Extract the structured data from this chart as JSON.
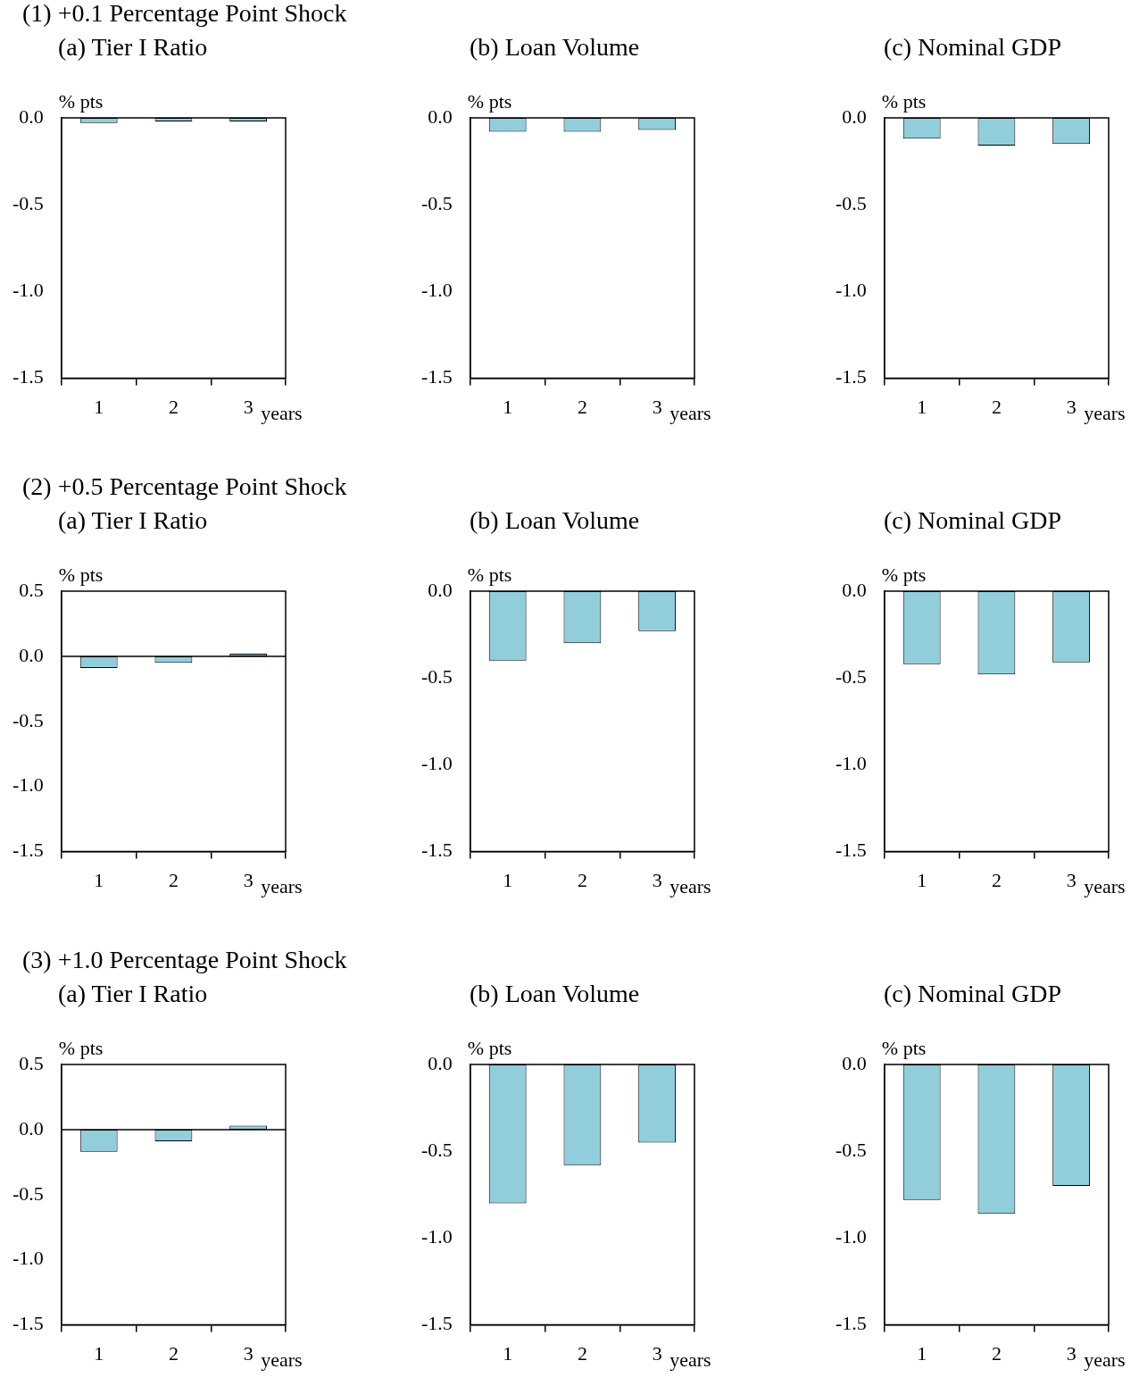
{
  "chart_data": [
    {
      "type": "bar",
      "title": "(1) +0.1 Percentage Point Shock",
      "subtitle": "(a) Tier I Ratio",
      "ylabel": "% pts",
      "xlabel": "years",
      "categories": [
        "1",
        "2",
        "3"
      ],
      "values": [
        -0.03,
        -0.02,
        -0.02
      ],
      "color": "#92cddc",
      "ylim": [
        -1.5,
        0
      ],
      "yticks": [
        {
          "value": 0,
          "label": "0.0"
        },
        {
          "value": -0.5,
          "label": "-0.5"
        },
        {
          "value": -1,
          "label": "-1.0"
        },
        {
          "value": -1.5,
          "label": "-1.5"
        }
      ],
      "grid": false,
      "legend": false
    },
    {
      "type": "bar",
      "title": "(b) Loan Volume",
      "ylabel": "% pts",
      "xlabel": "years",
      "categories": [
        "1",
        "2",
        "3"
      ],
      "values": [
        -0.08,
        -0.08,
        -0.07
      ],
      "color": "#92cddc",
      "ylim": [
        -1.5,
        0
      ],
      "yticks": [
        {
          "value": 0,
          "label": "0.0"
        },
        {
          "value": -0.5,
          "label": "-0.5"
        },
        {
          "value": -1,
          "label": "-1.0"
        },
        {
          "value": -1.5,
          "label": "-1.5"
        }
      ],
      "grid": false,
      "legend": false
    },
    {
      "type": "bar",
      "title": "(c) Nominal GDP",
      "ylabel": "% pts",
      "xlabel": "years",
      "categories": [
        "1",
        "2",
        "3"
      ],
      "values": [
        -0.12,
        -0.16,
        -0.15
      ],
      "color": "#92cddc",
      "ylim": [
        -1.5,
        0
      ],
      "yticks": [
        {
          "value": 0,
          "label": "0.0"
        },
        {
          "value": -0.5,
          "label": "-0.5"
        },
        {
          "value": -1,
          "label": "-1.0"
        },
        {
          "value": -1.5,
          "label": "-1.5"
        }
      ],
      "grid": false,
      "legend": false
    },
    {
      "type": "bar",
      "title": "(2) +0.5 Percentage Point Shock",
      "subtitle": "(a) Tier I Ratio",
      "ylabel": "% pts",
      "xlabel": "years",
      "categories": [
        "1",
        "2",
        "3"
      ],
      "values": [
        -0.09,
        -0.05,
        0.02
      ],
      "color": "#92cddc",
      "ylim": [
        -1.5,
        0.5
      ],
      "yticks": [
        {
          "value": 0.5,
          "label": "0.5"
        },
        {
          "value": 0,
          "label": "0.0"
        },
        {
          "value": -0.5,
          "label": "-0.5"
        },
        {
          "value": -1,
          "label": "-1.0"
        },
        {
          "value": -1.5,
          "label": "-1.5"
        }
      ],
      "ref_lines": [
        {
          "axis": "y",
          "value": 0
        }
      ],
      "grid": false,
      "legend": false
    },
    {
      "type": "bar",
      "title": "(b) Loan Volume",
      "ylabel": "% pts",
      "xlabel": "years",
      "categories": [
        "1",
        "2",
        "3"
      ],
      "values": [
        -0.4,
        -0.3,
        -0.23
      ],
      "color": "#92cddc",
      "ylim": [
        -1.5,
        0
      ],
      "yticks": [
        {
          "value": 0,
          "label": "0.0"
        },
        {
          "value": -0.5,
          "label": "-0.5"
        },
        {
          "value": -1,
          "label": "-1.0"
        },
        {
          "value": -1.5,
          "label": "-1.5"
        }
      ],
      "grid": false,
      "legend": false
    },
    {
      "type": "bar",
      "title": "(c) Nominal GDP",
      "ylabel": "% pts",
      "xlabel": "years",
      "categories": [
        "1",
        "2",
        "3"
      ],
      "values": [
        -0.42,
        -0.48,
        -0.41
      ],
      "color": "#92cddc",
      "ylim": [
        -1.5,
        0
      ],
      "yticks": [
        {
          "value": 0,
          "label": "0.0"
        },
        {
          "value": -0.5,
          "label": "-0.5"
        },
        {
          "value": -1,
          "label": "-1.0"
        },
        {
          "value": -1.5,
          "label": "-1.5"
        }
      ],
      "grid": false,
      "legend": false
    },
    {
      "type": "bar",
      "title": "(3) +1.0 Percentage Point Shock",
      "subtitle": "(a) Tier I Ratio",
      "ylabel": "% pts",
      "xlabel": "years",
      "categories": [
        "1",
        "2",
        "3"
      ],
      "values": [
        -0.17,
        -0.09,
        0.03
      ],
      "color": "#92cddc",
      "ylim": [
        -1.5,
        0.5
      ],
      "yticks": [
        {
          "value": 0.5,
          "label": "0.5"
        },
        {
          "value": 0,
          "label": "0.0"
        },
        {
          "value": -0.5,
          "label": "-0.5"
        },
        {
          "value": -1,
          "label": "-1.0"
        },
        {
          "value": -1.5,
          "label": "-1.5"
        }
      ],
      "ref_lines": [
        {
          "axis": "y",
          "value": 0
        }
      ],
      "grid": false,
      "legend": false
    },
    {
      "type": "bar",
      "title": "(b) Loan Volume",
      "ylabel": "% pts",
      "xlabel": "years",
      "categories": [
        "1",
        "2",
        "3"
      ],
      "values": [
        -0.8,
        -0.58,
        -0.45
      ],
      "color": "#92cddc",
      "ylim": [
        -1.5,
        0
      ],
      "yticks": [
        {
          "value": 0,
          "label": "0.0"
        },
        {
          "value": -0.5,
          "label": "-0.5"
        },
        {
          "value": -1,
          "label": "-1.0"
        },
        {
          "value": -1.5,
          "label": "-1.5"
        }
      ],
      "grid": false,
      "legend": false
    },
    {
      "type": "bar",
      "title": "(c) Nominal GDP",
      "ylabel": "% pts",
      "xlabel": "years",
      "categories": [
        "1",
        "2",
        "3"
      ],
      "values": [
        -0.78,
        -0.86,
        -0.7
      ],
      "color": "#92cddc",
      "ylim": [
        -1.5,
        0
      ],
      "yticks": [
        {
          "value": 0,
          "label": "0.0"
        },
        {
          "value": -0.5,
          "label": "-0.5"
        },
        {
          "value": -1,
          "label": "-1.0"
        },
        {
          "value": -1.5,
          "label": "-1.5"
        }
      ],
      "grid": false,
      "legend": false
    }
  ]
}
